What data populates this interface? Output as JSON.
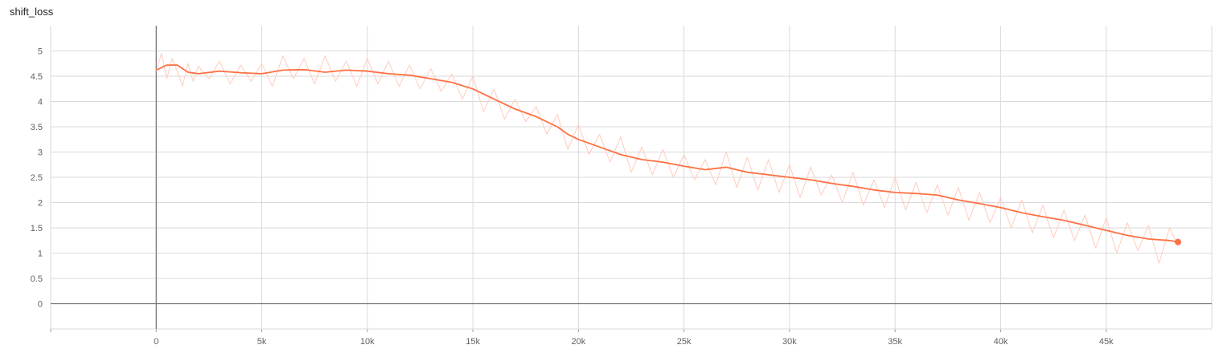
{
  "chart_data": {
    "type": "line",
    "title": "shift_loss",
    "xlabel": "",
    "ylabel": "",
    "xlim": [
      -5000,
      50000
    ],
    "ylim": [
      -0.5,
      5.5
    ],
    "grid": true,
    "xticks": [
      0,
      5000,
      10000,
      15000,
      20000,
      25000,
      30000,
      35000,
      40000,
      45000
    ],
    "xtick_labels": [
      "0",
      "5k",
      "10k",
      "15k",
      "20k",
      "25k",
      "30k",
      "35k",
      "40k",
      "45k"
    ],
    "yticks": [
      0,
      0.5,
      1,
      1.5,
      2,
      2.5,
      3,
      3.5,
      4,
      4.5,
      5
    ],
    "ytick_labels": [
      "0",
      "0.5",
      "1",
      "1.5",
      "2",
      "2.5",
      "3",
      "3.5",
      "4",
      "4.5",
      "5"
    ],
    "series": [
      {
        "role": "smoothed",
        "color": "#ff7043",
        "x": [
          0,
          500,
          1000,
          1500,
          2000,
          3000,
          4000,
          5000,
          6000,
          7000,
          8000,
          9000,
          10000,
          11000,
          12000,
          13000,
          14000,
          15000,
          16000,
          17000,
          18000,
          19000,
          19500,
          20000,
          21000,
          22000,
          23000,
          24000,
          25000,
          26000,
          27000,
          28000,
          29000,
          30000,
          31000,
          32000,
          33000,
          34000,
          35000,
          36000,
          37000,
          38000,
          39000,
          40000,
          41000,
          42000,
          43000,
          44000,
          45000,
          46000,
          47000,
          48000,
          48400
        ],
        "y": [
          4.62,
          4.72,
          4.72,
          4.58,
          4.55,
          4.6,
          4.57,
          4.55,
          4.62,
          4.63,
          4.58,
          4.62,
          4.6,
          4.55,
          4.52,
          4.45,
          4.38,
          4.25,
          4.05,
          3.85,
          3.7,
          3.5,
          3.35,
          3.25,
          3.1,
          2.95,
          2.85,
          2.8,
          2.72,
          2.65,
          2.7,
          2.6,
          2.55,
          2.5,
          2.45,
          2.38,
          2.32,
          2.25,
          2.2,
          2.18,
          2.15,
          2.05,
          1.98,
          1.9,
          1.8,
          1.72,
          1.65,
          1.55,
          1.45,
          1.35,
          1.28,
          1.25,
          1.22
        ]
      },
      {
        "role": "raw",
        "color": "#ffccbc",
        "x": [
          0,
          250,
          500,
          750,
          1000,
          1250,
          1500,
          1750,
          2000,
          2500,
          3000,
          3500,
          4000,
          4500,
          5000,
          5500,
          6000,
          6500,
          7000,
          7500,
          8000,
          8500,
          9000,
          9500,
          10000,
          10500,
          11000,
          11500,
          12000,
          12500,
          13000,
          13500,
          14000,
          14500,
          15000,
          15500,
          16000,
          16500,
          17000,
          17500,
          18000,
          18500,
          19000,
          19500,
          20000,
          20500,
          21000,
          21500,
          22000,
          22500,
          23000,
          23500,
          24000,
          24500,
          25000,
          25500,
          26000,
          26500,
          27000,
          27500,
          28000,
          28500,
          29000,
          29500,
          30000,
          30500,
          31000,
          31500,
          32000,
          32500,
          33000,
          33500,
          34000,
          34500,
          35000,
          35500,
          36000,
          36500,
          37000,
          37500,
          38000,
          38500,
          39000,
          39500,
          40000,
          40500,
          41000,
          41500,
          42000,
          42500,
          43000,
          43500,
          44000,
          44500,
          45000,
          45500,
          46000,
          46500,
          47000,
          47500,
          48000,
          48400
        ],
        "y": [
          4.6,
          4.95,
          4.45,
          4.85,
          4.6,
          4.3,
          4.75,
          4.4,
          4.7,
          4.45,
          4.8,
          4.35,
          4.72,
          4.4,
          4.75,
          4.3,
          4.9,
          4.45,
          4.85,
          4.35,
          4.9,
          4.4,
          4.8,
          4.3,
          4.85,
          4.35,
          4.8,
          4.3,
          4.72,
          4.25,
          4.65,
          4.2,
          4.55,
          4.05,
          4.5,
          3.8,
          4.25,
          3.65,
          4.05,
          3.6,
          3.9,
          3.35,
          3.75,
          3.05,
          3.55,
          2.95,
          3.35,
          2.8,
          3.3,
          2.6,
          3.1,
          2.55,
          3.05,
          2.5,
          2.95,
          2.45,
          2.85,
          2.35,
          3.0,
          2.3,
          2.9,
          2.25,
          2.85,
          2.2,
          2.75,
          2.1,
          2.7,
          2.15,
          2.55,
          2.0,
          2.6,
          1.95,
          2.45,
          1.9,
          2.5,
          1.85,
          2.4,
          1.8,
          2.35,
          1.75,
          2.3,
          1.65,
          2.2,
          1.6,
          2.1,
          1.5,
          2.05,
          1.4,
          1.95,
          1.3,
          1.85,
          1.25,
          1.75,
          1.1,
          1.7,
          1.0,
          1.6,
          1.05,
          1.55,
          0.8,
          1.5,
          1.15
        ]
      }
    ]
  }
}
